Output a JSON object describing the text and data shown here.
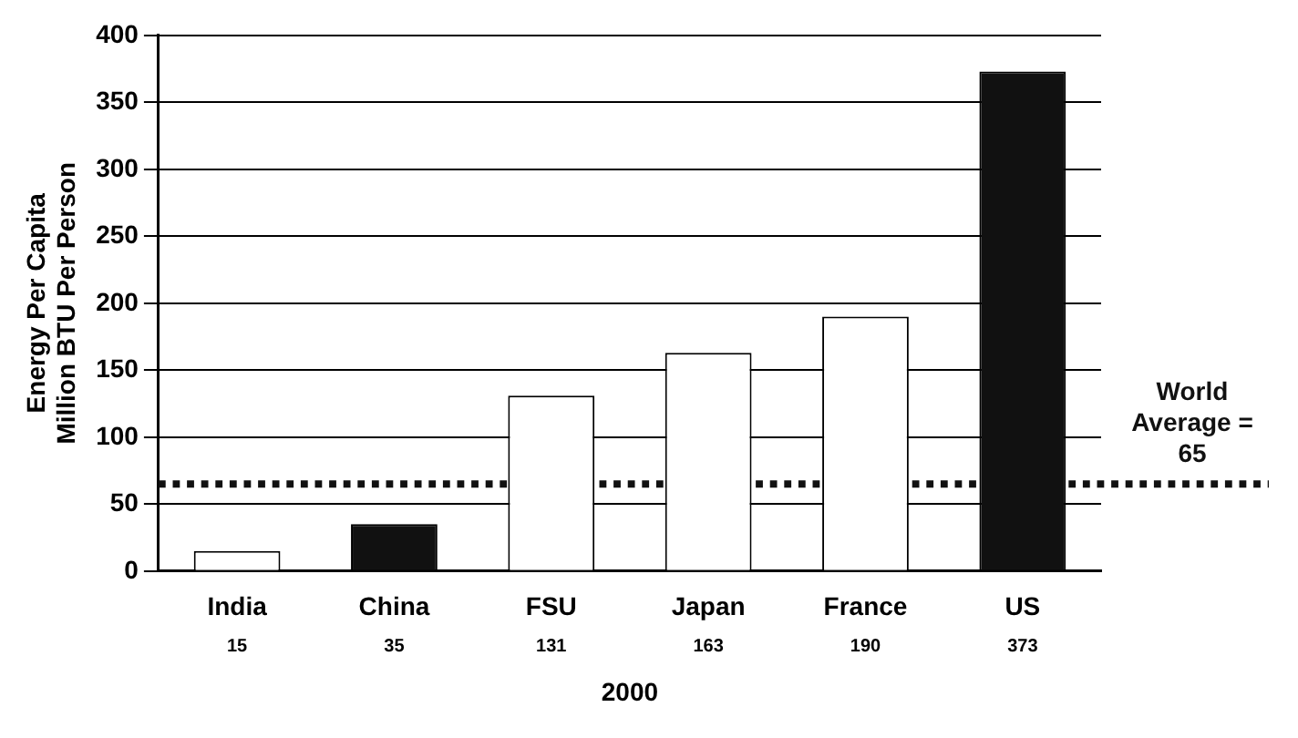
{
  "chart_data": {
    "type": "bar",
    "xlabel": "2000",
    "ylabel": "Energy Per Capita\nMillion BTU Per Person",
    "categories": [
      "India",
      "China",
      "FSU",
      "Japan",
      "France",
      "US"
    ],
    "values": [
      15,
      35,
      131,
      163,
      190,
      373
    ],
    "colors": [
      "#ffffff",
      "#111111",
      "#ffffff",
      "#ffffff",
      "#ffffff",
      "#111111"
    ],
    "ylim": [
      0,
      400
    ],
    "yticks": [
      0,
      50,
      100,
      150,
      200,
      250,
      300,
      350,
      400
    ],
    "grid": "y",
    "legend": false,
    "data_labels": true,
    "ref_lines": [
      {
        "axis": "y",
        "value": 65,
        "label": "World Average = 65",
        "color": "#111111",
        "line_style": "dotted"
      }
    ]
  }
}
